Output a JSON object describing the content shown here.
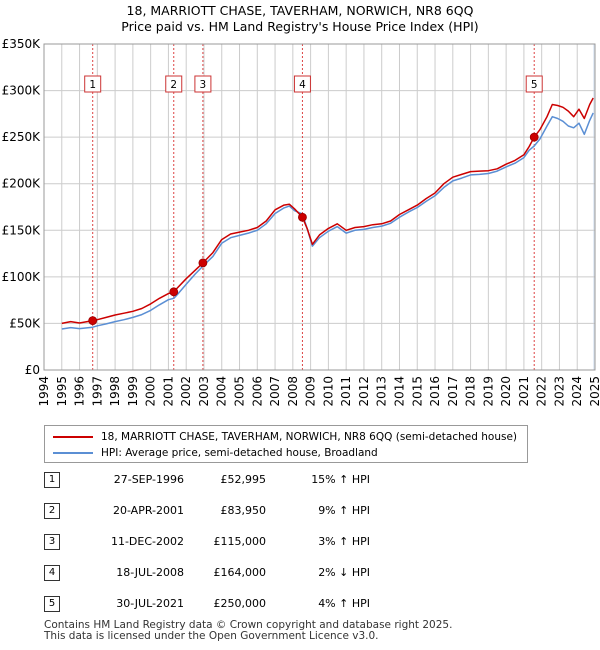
{
  "title_line1": "18, MARRIOTT CHASE, TAVERHAM, NORWICH, NR8 6QQ",
  "title_line2": "Price paid vs. HM Land Registry's House Price Index (HPI)",
  "colors": {
    "property": "#cc0000",
    "hpi": "#5b8fd4",
    "shade": "#dde6f4",
    "grid": "#cccccc",
    "marker_line": "#dd4444"
  },
  "chart_data": {
    "type": "line",
    "title": "18, MARRIOTT CHASE, TAVERHAM, NORWICH, NR8 6QQ — Price paid vs. HM Land Registry's House Price Index (HPI)",
    "xlabel": "",
    "ylabel": "",
    "xlim": [
      1994,
      2025
    ],
    "ylim": [
      0,
      350000
    ],
    "x_ticks": [
      1994,
      1995,
      1996,
      1997,
      1998,
      1999,
      2000,
      2001,
      2002,
      2003,
      2004,
      2005,
      2006,
      2007,
      2008,
      2009,
      2010,
      2011,
      2012,
      2013,
      2014,
      2015,
      2016,
      2017,
      2018,
      2019,
      2020,
      2021,
      2022,
      2023,
      2024,
      2025
    ],
    "y_ticks": [
      {
        "value": 0,
        "label": "£0"
      },
      {
        "value": 50000,
        "label": "£50K"
      },
      {
        "value": 100000,
        "label": "£100K"
      },
      {
        "value": 150000,
        "label": "£150K"
      },
      {
        "value": 200000,
        "label": "£200K"
      },
      {
        "value": 250000,
        "label": "£250K"
      },
      {
        "value": 300000,
        "label": "£300K"
      },
      {
        "value": 350000,
        "label": "£350K"
      }
    ],
    "grid": true,
    "series": [
      {
        "name": "18, MARRIOTT CHASE, TAVERHAM, NORWICH, NR8 6QQ (semi-detached house)",
        "x": [
          1995.0,
          1995.5,
          1996.0,
          1996.74,
          1997.0,
          1997.5,
          1998.0,
          1998.5,
          1999.0,
          1999.5,
          2000.0,
          2000.5,
          2001.0,
          2001.3,
          2001.5,
          2002.0,
          2002.5,
          2002.94,
          2003.5,
          2004.0,
          2004.5,
          2005.0,
          2005.5,
          2006.0,
          2006.5,
          2007.0,
          2007.5,
          2007.8,
          2008.1,
          2008.54,
          2008.8,
          2009.1,
          2009.5,
          2010.0,
          2010.5,
          2011.0,
          2011.5,
          2012.0,
          2012.5,
          2013.0,
          2013.5,
          2014.0,
          2014.5,
          2015.0,
          2015.5,
          2016.0,
          2016.5,
          2017.0,
          2017.5,
          2018.0,
          2018.5,
          2019.0,
          2019.5,
          2020.0,
          2020.5,
          2021.0,
          2021.3,
          2021.58,
          2021.9,
          2022.3,
          2022.6,
          2022.9,
          2023.2,
          2023.5,
          2023.8,
          2024.1,
          2024.4,
          2024.7,
          2024.9
        ],
        "y": [
          50000,
          52000,
          50500,
          52995,
          54000,
          56500,
          59000,
          61000,
          63000,
          66000,
          71000,
          77000,
          82000,
          83950,
          88000,
          98000,
          107000,
          115000,
          126000,
          140000,
          146000,
          148000,
          150000,
          153000,
          160000,
          172000,
          177000,
          178000,
          173000,
          164000,
          152000,
          135000,
          145000,
          152000,
          157000,
          150000,
          153000,
          154000,
          156000,
          157000,
          160000,
          167000,
          172000,
          177000,
          184000,
          190000,
          200000,
          207000,
          210000,
          213000,
          213500,
          214000,
          216000,
          221000,
          225000,
          231000,
          240000,
          250000,
          258000,
          272000,
          285000,
          284000,
          282000,
          278000,
          272000,
          280000,
          270000,
          285000,
          292000
        ]
      },
      {
        "name": "HPI: Average price, semi-detached house, Broadland",
        "x": [
          1995.0,
          1995.5,
          1996.0,
          1996.74,
          1997.0,
          1997.5,
          1998.0,
          1998.5,
          1999.0,
          1999.5,
          2000.0,
          2000.5,
          2001.0,
          2001.3,
          2001.5,
          2002.0,
          2002.5,
          2002.94,
          2003.5,
          2004.0,
          2004.5,
          2005.0,
          2005.5,
          2006.0,
          2006.5,
          2007.0,
          2007.5,
          2007.8,
          2008.1,
          2008.54,
          2008.8,
          2009.1,
          2009.5,
          2010.0,
          2010.5,
          2011.0,
          2011.5,
          2012.0,
          2012.5,
          2013.0,
          2013.5,
          2014.0,
          2014.5,
          2015.0,
          2015.5,
          2016.0,
          2016.5,
          2017.0,
          2017.5,
          2018.0,
          2018.5,
          2019.0,
          2019.5,
          2020.0,
          2020.5,
          2021.0,
          2021.3,
          2021.58,
          2021.9,
          2022.3,
          2022.6,
          2022.9,
          2023.2,
          2023.5,
          2023.8,
          2024.1,
          2024.4,
          2024.7,
          2024.9
        ],
        "y": [
          44000,
          45500,
          44500,
          46000,
          47500,
          49500,
          52000,
          54000,
          56500,
          59500,
          64000,
          70000,
          75500,
          77000,
          81000,
          92000,
          103000,
          111500,
          122000,
          136000,
          142000,
          144500,
          147000,
          150000,
          157000,
          168000,
          174000,
          176000,
          171000,
          167500,
          152000,
          133000,
          142000,
          149000,
          154000,
          147000,
          150000,
          151000,
          153000,
          154500,
          157500,
          164000,
          169500,
          174500,
          181000,
          187000,
          196000,
          203000,
          206000,
          209500,
          210000,
          211000,
          213500,
          218000,
          222000,
          228000,
          236000,
          240500,
          248000,
          262000,
          272000,
          270000,
          267000,
          262000,
          260000,
          265000,
          253000,
          268000,
          276000
        ]
      }
    ],
    "sales": [
      {
        "num": "1",
        "x": 1996.74,
        "y": 52995
      },
      {
        "num": "2",
        "x": 2001.3,
        "y": 83950
      },
      {
        "num": "3",
        "x": 2002.94,
        "y": 115000
      },
      {
        "num": "4",
        "x": 2008.54,
        "y": 164000
      },
      {
        "num": "5",
        "x": 2021.58,
        "y": 250000
      }
    ]
  },
  "legend": {
    "property_label": "18, MARRIOTT CHASE, TAVERHAM, NORWICH, NR8 6QQ (semi-detached house)",
    "hpi_label": "HPI: Average price, semi-detached house, Broadland"
  },
  "sales_table": [
    {
      "num": "1",
      "date": "27-SEP-1996",
      "price": "£52,995",
      "hpi": "15% ↑ HPI"
    },
    {
      "num": "2",
      "date": "20-APR-2001",
      "price": "£83,950",
      "hpi": "9% ↑ HPI"
    },
    {
      "num": "3",
      "date": "11-DEC-2002",
      "price": "£115,000",
      "hpi": "3% ↑ HPI"
    },
    {
      "num": "4",
      "date": "18-JUL-2008",
      "price": "£164,000",
      "hpi": "2% ↓ HPI"
    },
    {
      "num": "5",
      "date": "30-JUL-2021",
      "price": "£250,000",
      "hpi": "4% ↑ HPI"
    }
  ],
  "footer": {
    "line1": "Contains HM Land Registry data © Crown copyright and database right 2025.",
    "line2": "This data is licensed under the Open Government Licence v3.0."
  }
}
